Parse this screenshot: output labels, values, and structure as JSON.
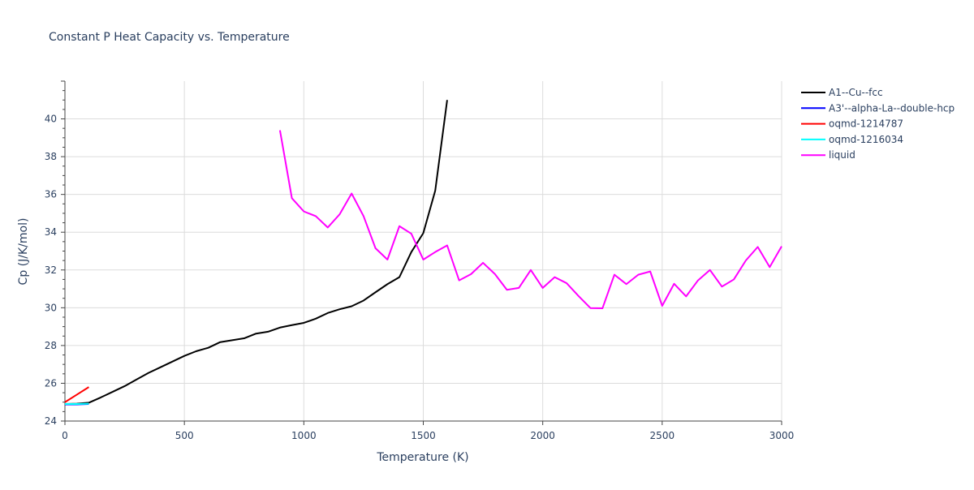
{
  "chart_data": {
    "type": "line",
    "title": "Constant P Heat Capacity vs. Temperature",
    "xlabel": "Temperature (K)",
    "ylabel": "Cp (J/K/mol)",
    "xlim": [
      0,
      3000
    ],
    "ylim": [
      24,
      42
    ],
    "x_ticks": [
      0,
      500,
      1000,
      1500,
      2000,
      2500,
      3000
    ],
    "x_tick_labels": [
      "0",
      "500",
      "1000",
      "1500",
      "2000",
      "2500",
      "3000"
    ],
    "y_ticks": [
      24,
      26,
      28,
      30,
      32,
      34,
      36,
      38,
      40
    ],
    "y_tick_labels": [
      "24",
      "26",
      "28",
      "30",
      "32",
      "34",
      "36",
      "38",
      "40"
    ],
    "grid": true,
    "legend_position": "top-right outside",
    "series": [
      {
        "name": "A1--Cu--fcc",
        "color": "#000000",
        "x": [
          0,
          50,
          100,
          150,
          200,
          250,
          300,
          350,
          400,
          450,
          500,
          550,
          600,
          650,
          700,
          750,
          800,
          850,
          900,
          950,
          1000,
          1050,
          1100,
          1150,
          1200,
          1250,
          1300,
          1350,
          1400,
          1450,
          1500,
          1550,
          1600
        ],
        "y": [
          24.9,
          24.92,
          24.97,
          25.25,
          25.55,
          25.85,
          26.2,
          26.55,
          26.85,
          27.15,
          27.45,
          27.7,
          27.88,
          28.18,
          28.28,
          28.38,
          28.63,
          28.73,
          28.95,
          29.08,
          29.2,
          29.42,
          29.72,
          29.92,
          30.08,
          30.38,
          30.82,
          31.25,
          31.62,
          32.95,
          33.95,
          36.2,
          41.0
        ]
      },
      {
        "name": "A3'--alpha-La--double-hcp",
        "color": "#0000ff",
        "x": [
          0,
          50,
          100
        ],
        "y": [
          24.88,
          24.88,
          24.9
        ]
      },
      {
        "name": "oqmd-1214787",
        "color": "#ff0000",
        "x": [
          0,
          50,
          100
        ],
        "y": [
          25.0,
          25.4,
          25.8
        ]
      },
      {
        "name": "oqmd-1216034",
        "color": "#00ffff",
        "x": [
          0,
          50,
          100
        ],
        "y": [
          24.9,
          24.9,
          24.92
        ]
      },
      {
        "name": "liquid",
        "color": "#ff00ff",
        "x": [
          900,
          950,
          1000,
          1050,
          1100,
          1150,
          1200,
          1250,
          1300,
          1350,
          1400,
          1450,
          1500,
          1550,
          1600,
          1650,
          1700,
          1750,
          1800,
          1850,
          1900,
          1950,
          2000,
          2050,
          2100,
          2150,
          2200,
          2250,
          2300,
          2350,
          2400,
          2450,
          2500,
          2550,
          2600,
          2650,
          2700,
          2750,
          2800,
          2850,
          2900,
          2950,
          3000
        ],
        "y": [
          39.4,
          35.8,
          35.1,
          34.85,
          34.25,
          34.95,
          36.05,
          34.85,
          33.15,
          32.55,
          34.32,
          33.92,
          32.55,
          32.95,
          33.3,
          31.45,
          31.78,
          32.38,
          31.78,
          30.95,
          31.05,
          32.0,
          31.05,
          31.62,
          31.3,
          30.62,
          29.98,
          29.97,
          31.75,
          31.25,
          31.75,
          31.92,
          30.1,
          31.27,
          30.6,
          31.45,
          32.0,
          31.12,
          31.5,
          32.5,
          33.22,
          32.15,
          33.25
        ]
      }
    ]
  }
}
